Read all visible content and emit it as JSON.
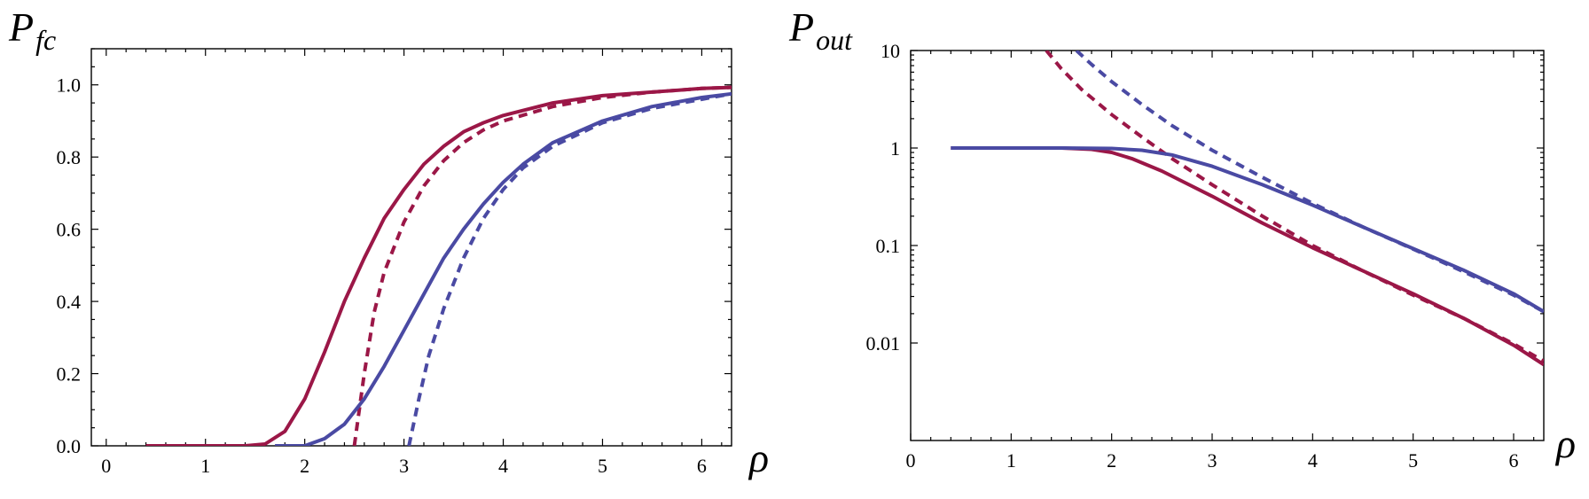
{
  "chart_data": [
    {
      "type": "line",
      "ylabel_main": "P",
      "ylabel_sub": "fc",
      "xlabel": "ρ",
      "xlim": [
        -0.15,
        6.3
      ],
      "ylim": [
        0,
        1.1
      ],
      "yscale": "linear",
      "xticks": [
        "0",
        "1",
        "2",
        "3",
        "4",
        "5",
        "6"
      ],
      "xtick_values": [
        0,
        1,
        2,
        3,
        4,
        5,
        6
      ],
      "yticks": [
        "0.0",
        "0.2",
        "0.4",
        "0.6",
        "0.8",
        "1.0"
      ],
      "ytick_values": [
        0,
        0.2,
        0.4,
        0.6,
        0.8,
        1.0
      ],
      "colors": {
        "red": "#9b1747",
        "blue": "#4a4aa3"
      },
      "series": [
        {
          "color": "red",
          "style": "solid",
          "x": [
            0.4,
            1.0,
            1.4,
            1.6,
            1.8,
            2.0,
            2.2,
            2.4,
            2.6,
            2.8,
            3.0,
            3.2,
            3.4,
            3.6,
            3.8,
            4.0,
            4.5,
            5.0,
            5.5,
            6.0,
            6.3
          ],
          "y": [
            0.0,
            0.0,
            0.0,
            0.005,
            0.04,
            0.13,
            0.26,
            0.4,
            0.52,
            0.63,
            0.71,
            0.78,
            0.83,
            0.87,
            0.895,
            0.915,
            0.95,
            0.97,
            0.98,
            0.99,
            0.993
          ]
        },
        {
          "color": "red",
          "style": "dashed",
          "x": [
            2.5,
            2.6,
            2.7,
            2.8,
            3.0,
            3.2,
            3.4,
            3.6,
            3.8,
            4.0,
            4.5,
            5.0,
            5.5,
            6.0,
            6.3
          ],
          "y": [
            0.0,
            0.2,
            0.37,
            0.48,
            0.62,
            0.72,
            0.79,
            0.84,
            0.875,
            0.9,
            0.94,
            0.965,
            0.98,
            0.99,
            0.993
          ]
        },
        {
          "color": "blue",
          "style": "solid",
          "x": [
            1.7,
            2.0,
            2.2,
            2.4,
            2.6,
            2.8,
            3.0,
            3.2,
            3.4,
            3.6,
            3.8,
            4.0,
            4.2,
            4.5,
            5.0,
            5.5,
            6.0,
            6.3
          ],
          "y": [
            0.0,
            0.0,
            0.02,
            0.06,
            0.13,
            0.22,
            0.32,
            0.42,
            0.52,
            0.6,
            0.67,
            0.73,
            0.78,
            0.84,
            0.9,
            0.94,
            0.965,
            0.975
          ]
        },
        {
          "color": "blue",
          "style": "dashed",
          "x": [
            3.05,
            3.15,
            3.25,
            3.4,
            3.6,
            3.8,
            4.0,
            4.2,
            4.5,
            5.0,
            5.5,
            6.0,
            6.3
          ],
          "y": [
            0.0,
            0.13,
            0.25,
            0.38,
            0.52,
            0.63,
            0.71,
            0.77,
            0.83,
            0.895,
            0.935,
            0.96,
            0.975
          ]
        }
      ]
    },
    {
      "type": "line",
      "ylabel_main": "P",
      "ylabel_sub": "out",
      "xlabel": "ρ",
      "xlim": [
        0,
        6.3
      ],
      "ylim": [
        0.001,
        10
      ],
      "yscale": "log",
      "xticks": [
        "0",
        "1",
        "2",
        "3",
        "4",
        "5",
        "6"
      ],
      "xtick_values": [
        0,
        1,
        2,
        3,
        4,
        5,
        6
      ],
      "yticks": [
        "0.01",
        "0.1",
        "1",
        "10"
      ],
      "ytick_values": [
        0.01,
        0.1,
        1,
        10
      ],
      "colors": {
        "red": "#9b1747",
        "blue": "#4a4aa3"
      },
      "series": [
        {
          "color": "red",
          "style": "solid",
          "x": [
            0.4,
            1.0,
            1.5,
            1.8,
            2.0,
            2.2,
            2.5,
            3.0,
            3.5,
            4.0,
            4.5,
            5.0,
            5.5,
            6.0,
            6.3
          ],
          "y": [
            1.0,
            1.0,
            1.0,
            0.97,
            0.9,
            0.78,
            0.58,
            0.32,
            0.17,
            0.095,
            0.055,
            0.032,
            0.018,
            0.0095,
            0.006
          ]
        },
        {
          "color": "red",
          "style": "dashed",
          "x": [
            1.35,
            1.5,
            1.7,
            2.0,
            2.3,
            2.6,
            3.0,
            3.5,
            4.0,
            4.5,
            5.0,
            5.5,
            6.0,
            6.3
          ],
          "y": [
            10.0,
            6.5,
            4.0,
            2.2,
            1.3,
            0.78,
            0.42,
            0.2,
            0.1,
            0.055,
            0.031,
            0.018,
            0.0098,
            0.0065
          ]
        },
        {
          "color": "blue",
          "style": "solid",
          "x": [
            0.4,
            1.0,
            1.5,
            2.0,
            2.3,
            2.6,
            3.0,
            3.5,
            4.0,
            4.5,
            5.0,
            5.5,
            6.0,
            6.3
          ],
          "y": [
            1.0,
            1.0,
            1.0,
            0.99,
            0.95,
            0.85,
            0.65,
            0.42,
            0.26,
            0.155,
            0.093,
            0.056,
            0.032,
            0.021
          ]
        },
        {
          "color": "blue",
          "style": "dashed",
          "x": [
            1.65,
            1.8,
            2.0,
            2.3,
            2.6,
            3.0,
            3.5,
            4.0,
            4.5,
            5.0,
            5.5,
            6.0,
            6.3
          ],
          "y": [
            10.0,
            7.2,
            4.8,
            2.8,
            1.7,
            0.95,
            0.5,
            0.27,
            0.155,
            0.092,
            0.054,
            0.031,
            0.021
          ]
        }
      ]
    }
  ]
}
